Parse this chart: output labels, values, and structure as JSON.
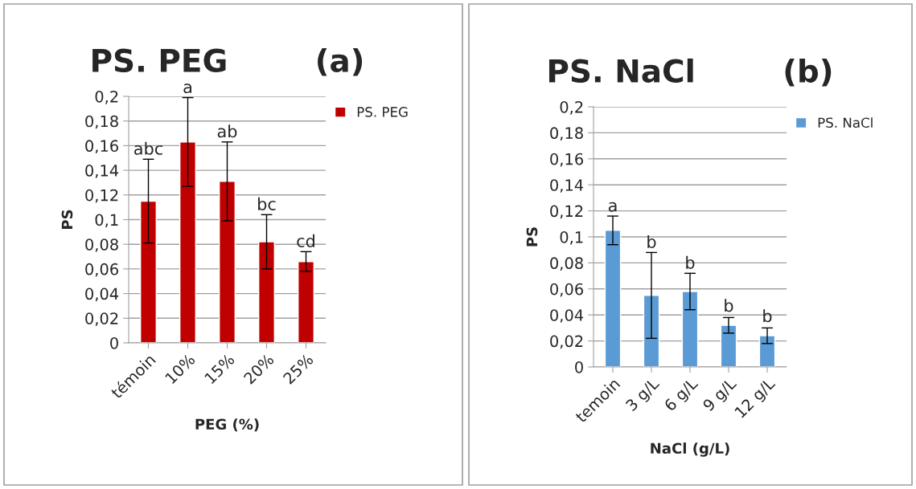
{
  "chart_data": [
    {
      "type": "bar",
      "title": "PS. PEG        (a)",
      "xlabel": "PEG (%)",
      "ylabel": "PS",
      "categories": [
        "témoin",
        "10%",
        "15%",
        "20%",
        "25%"
      ],
      "series": [
        {
          "name": "PS. PEG",
          "color": "#c00000",
          "values": [
            0.115,
            0.163,
            0.131,
            0.082,
            0.066
          ],
          "errors": [
            0.034,
            0.036,
            0.032,
            0.022,
            0.008
          ]
        }
      ],
      "ylim": [
        0,
        0.2
      ],
      "yticks": [
        0,
        {
          "value": 0.02,
          "label": "0,02"
        },
        {
          "value": 0.04,
          "label": "0,04"
        },
        {
          "value": 0.06,
          "label": "0,06"
        },
        {
          "value": 0.08,
          "label": "0,08"
        },
        {
          "value": 0.1,
          "label": "0,1"
        },
        {
          "value": 0.12,
          "label": "0,12"
        },
        {
          "value": 0.14,
          "label": "0,14"
        },
        {
          "value": 0.16,
          "label": "0,16"
        },
        {
          "value": 0.18,
          "label": "0,18"
        },
        {
          "value": 0.2,
          "label": "0,2"
        }
      ],
      "grid": "y",
      "legend": "top right",
      "annotations": [
        {
          "text": "abc",
          "x": "témoin",
          "y": 0.149
        },
        {
          "text": "a",
          "x": "10%",
          "y": 0.199
        },
        {
          "text": "ab",
          "x": "15%",
          "y": 0.163
        },
        {
          "text": "bc",
          "x": "20%",
          "y": 0.104
        },
        {
          "text": "cd",
          "x": "25%",
          "y": 0.074
        }
      ]
    },
    {
      "type": "bar",
      "title": "PS. NaCl        (b)",
      "xlabel": "NaCl (g/L)",
      "ylabel": "PS",
      "categories": [
        "temoin",
        "3 g/L",
        "6 g/L",
        "9 g/L",
        "12 g/L"
      ],
      "series": [
        {
          "name": "PS. NaCl",
          "color": "#5b9bd5",
          "values": [
            0.105,
            0.055,
            0.058,
            0.032,
            0.024
          ],
          "errors": [
            0.011,
            0.033,
            0.014,
            0.006,
            0.006
          ]
        }
      ],
      "ylim": [
        0,
        0.2
      ],
      "yticks": [
        0,
        {
          "value": 0.02,
          "label": "0,02"
        },
        {
          "value": 0.04,
          "label": "0,04"
        },
        {
          "value": 0.06,
          "label": "0,06"
        },
        {
          "value": 0.08,
          "label": "0,08"
        },
        {
          "value": 0.1,
          "label": "0,1"
        },
        {
          "value": 0.12,
          "label": "0,12"
        },
        {
          "value": 0.14,
          "label": "0,14"
        },
        {
          "value": 0.16,
          "label": "0,16"
        },
        {
          "value": 0.18,
          "label": "0,18"
        },
        {
          "value": 0.2,
          "label": "0,2"
        }
      ],
      "grid": "y",
      "legend": "top right",
      "annotations": [
        {
          "text": "a",
          "x": "temoin",
          "y": 0.116
        },
        {
          "text": "b",
          "x": "3 g/L",
          "y": 0.088
        },
        {
          "text": "b",
          "x": "6 g/L",
          "y": 0.072
        },
        {
          "text": "b",
          "x": "9 g/L",
          "y": 0.039
        },
        {
          "text": "b",
          "x": "12 g/L",
          "y": 0.031
        }
      ]
    }
  ]
}
